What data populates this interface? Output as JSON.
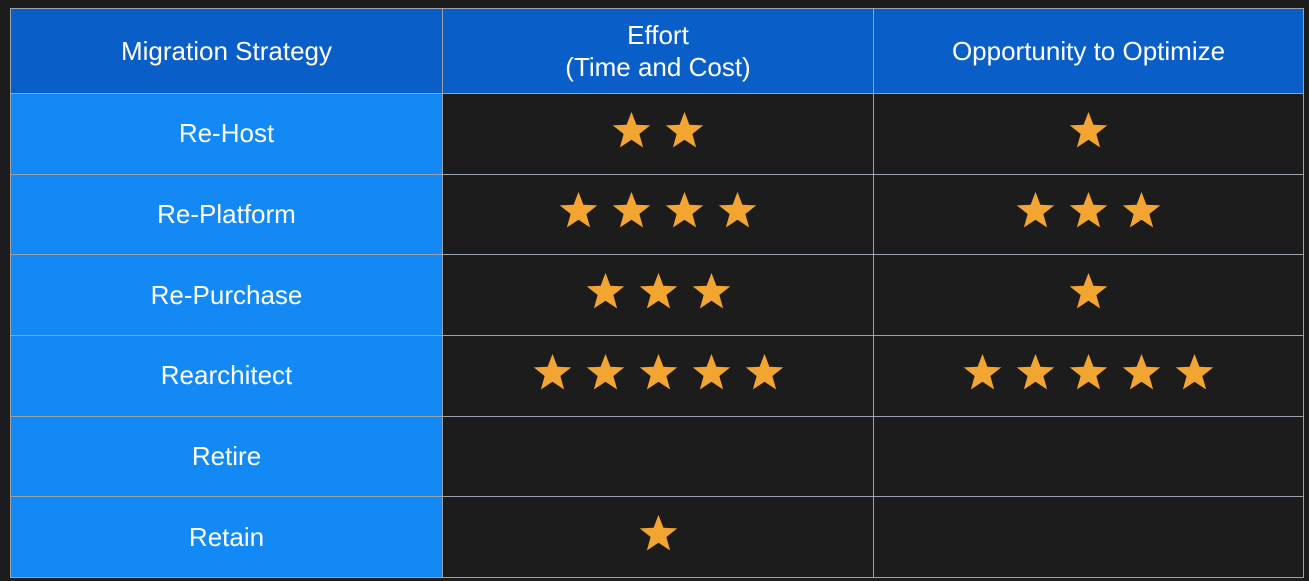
{
  "header": {
    "col1": "Migration Strategy",
    "col2_line1": "Effort",
    "col2_line2": "(Time and Cost)",
    "col3": "Opportunity to Optimize"
  },
  "rows": [
    {
      "strategy": "Re-Host",
      "effort_stars": 2,
      "opportunity_stars": 1
    },
    {
      "strategy": "Re-Platform",
      "effort_stars": 4,
      "opportunity_stars": 3
    },
    {
      "strategy": "Re-Purchase",
      "effort_stars": 3,
      "opportunity_stars": 1
    },
    {
      "strategy": "Rearchitect",
      "effort_stars": 5,
      "opportunity_stars": 5
    },
    {
      "strategy": "Retire",
      "effort_stars": 0,
      "opportunity_stars": 0
    },
    {
      "strategy": "Retain",
      "effort_stars": 1,
      "opportunity_stars": 0
    }
  ],
  "colors": {
    "header_bg": "#0a5ec7",
    "strategy_bg": "#1389f5",
    "cell_bg": "#1d1c1d",
    "star": "#f2a530"
  },
  "icons": {
    "rating": "star-icon"
  }
}
